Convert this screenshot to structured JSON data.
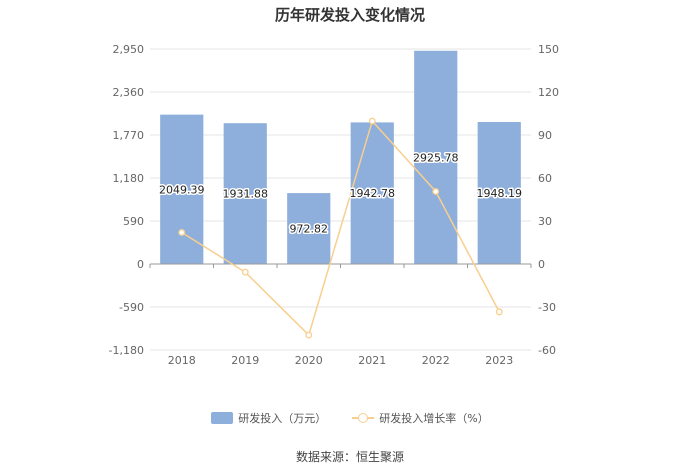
{
  "title": "历年研发投入变化情况",
  "source": "数据来源：恒生聚源",
  "legend": {
    "bar_label": "研发投入（万元）",
    "line_label": "研发投入增长率（%）"
  },
  "colors": {
    "bar": "#8eaedb",
    "line": "#f7cf8f",
    "axis": "#999999",
    "grid": "#e6e6e6"
  },
  "chart_data": {
    "type": "bar",
    "title": "历年研发投入变化情况",
    "categories": [
      "2018",
      "2019",
      "2020",
      "2021",
      "2022",
      "2023"
    ],
    "series": [
      {
        "name": "研发投入（万元）",
        "type": "bar",
        "axis": "left",
        "values": [
          2049.39,
          1931.88,
          972.82,
          1942.78,
          2925.78,
          1948.19
        ],
        "labels": [
          "2049.39",
          "1931.88",
          "972.82",
          "1942.78",
          "2925.78",
          "1948.19"
        ]
      },
      {
        "name": "研发投入增长率（%）",
        "type": "line",
        "axis": "right",
        "values": [
          22,
          -5.7,
          -49.6,
          99.7,
          50.6,
          -33.4
        ]
      }
    ],
    "y_left": {
      "ticks": [
        -1180,
        -590,
        0,
        590,
        1180,
        1770,
        2360,
        2950
      ],
      "tick_labels": [
        "-1,180",
        "-590",
        "0",
        "590",
        "1,180",
        "1,770",
        "2,360",
        "2,950"
      ],
      "ylim": [
        -1180,
        2950
      ]
    },
    "y_right": {
      "ticks": [
        -60,
        -30,
        0,
        30,
        60,
        90,
        120,
        150
      ],
      "tick_labels": [
        "-60",
        "-30",
        "0",
        "30",
        "60",
        "90",
        "120",
        "150"
      ],
      "ylim": [
        -60,
        150
      ]
    },
    "grid": true,
    "legend_position": "bottom"
  }
}
